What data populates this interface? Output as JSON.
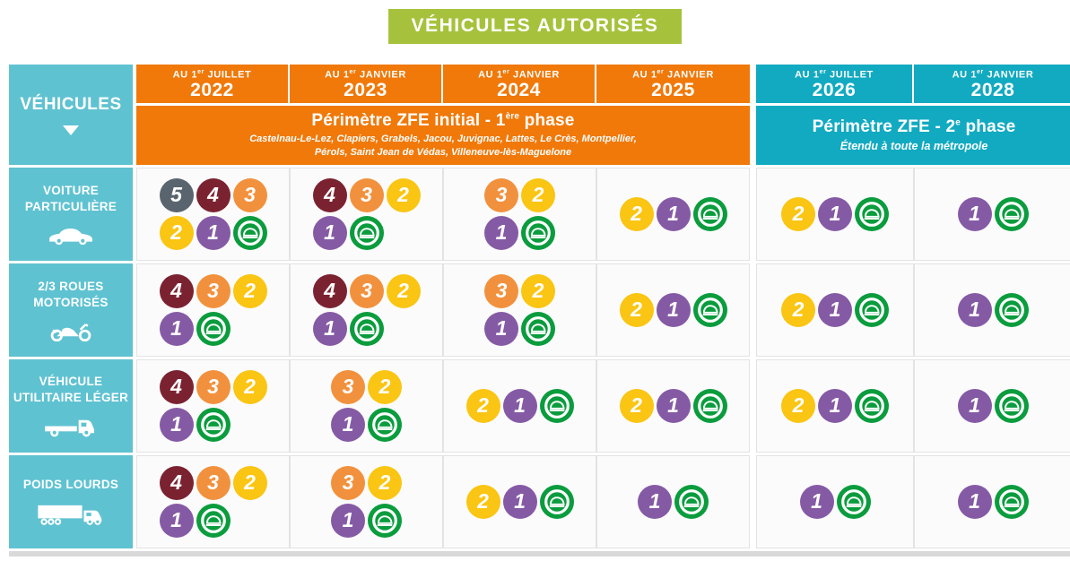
{
  "title": "VÉHICULES AUTORISÉS",
  "corner": {
    "label": "VÉHICULES"
  },
  "colors": {
    "title_green": "#a6c23c",
    "phase1_orange": "#f0790a",
    "teal_light": "#5fc2d1",
    "teal_deep": "#12aac1",
    "bottom_bar_gray": "#d9d9d9"
  },
  "columns": [
    {
      "prefix": "AU 1",
      "sup": "er",
      "suffix": " JUILLET",
      "year": "2022",
      "section": "phase1"
    },
    {
      "prefix": "AU 1",
      "sup": "er",
      "suffix": " JANVIER",
      "year": "2023",
      "section": "phase1"
    },
    {
      "prefix": "AU 1",
      "sup": "er",
      "suffix": " JANVIER",
      "year": "2024",
      "section": "phase1"
    },
    {
      "prefix": "AU 1",
      "sup": "er",
      "suffix": " JANVIER",
      "year": "2025",
      "section": "phase1"
    },
    {
      "prefix": "AU 1",
      "sup": "er",
      "suffix": " JUILLET",
      "year": "2026",
      "section": "phase2"
    },
    {
      "prefix": "AU 1",
      "sup": "er",
      "suffix": " JANVIER",
      "year": "2028",
      "section": "phase2"
    }
  ],
  "phase1_header": {
    "title_pre": "Périmètre ZFE initial - 1",
    "title_sup": "ère",
    "title_post": " phase",
    "subtitle_lines": [
      "Castelnau-Le-Lez, Clapiers, Grabels, Jacou, Juvignac, Lattes, Le Crès, Montpellier,",
      "Pérols, Saint Jean de Védas, Villeneuve-lès-Maguelone"
    ]
  },
  "phase2_header": {
    "title_pre": "Périmètre ZFE - 2",
    "title_sup": "e",
    "title_post": " phase",
    "subtitle": "Étendu à toute la métropole"
  },
  "badges": {
    "5": {
      "label": "5",
      "color": "#5a646e"
    },
    "4": {
      "label": "4",
      "color": "#7b2231"
    },
    "3": {
      "label": "3",
      "color": "#f2913d"
    },
    "2": {
      "label": "2",
      "color": "#fac513"
    },
    "1": {
      "label": "1",
      "color": "#855aa5"
    },
    "E": {
      "label": "E",
      "color": "#0a9c3d",
      "type": "electric-green-vignette"
    }
  },
  "rows": [
    {
      "label_lines": [
        "VOITURE",
        "PARTICULIÈRE"
      ],
      "icon": "car-icon",
      "cells": [
        [
          [
            "5",
            "4",
            "3"
          ],
          [
            "2",
            "1",
            "E"
          ]
        ],
        [
          [
            "4",
            "3",
            "2"
          ],
          [
            "1",
            "E"
          ]
        ],
        [
          [
            "3",
            "2"
          ],
          [
            "1",
            "E"
          ]
        ],
        [
          [
            "2",
            "1",
            "E"
          ]
        ],
        [
          [
            "2",
            "1",
            "E"
          ]
        ],
        [
          [
            "1",
            "E"
          ]
        ]
      ]
    },
    {
      "label_lines": [
        "2/3 ROUES",
        "MOTORISÉS"
      ],
      "icon": "motorcycle-icon",
      "cells": [
        [
          [
            "4",
            "3",
            "2"
          ],
          [
            "1",
            "E"
          ]
        ],
        [
          [
            "4",
            "3",
            "2"
          ],
          [
            "1",
            "E"
          ]
        ],
        [
          [
            "3",
            "2"
          ],
          [
            "1",
            "E"
          ]
        ],
        [
          [
            "2",
            "1",
            "E"
          ]
        ],
        [
          [
            "2",
            "1",
            "E"
          ]
        ],
        [
          [
            "1",
            "E"
          ]
        ]
      ]
    },
    {
      "label_lines": [
        "VÉHICULE",
        "UTILITAIRE LÉGER"
      ],
      "icon": "flatbed-truck-icon",
      "cells": [
        [
          [
            "4",
            "3",
            "2"
          ],
          [
            "1",
            "E"
          ]
        ],
        [
          [
            "3",
            "2"
          ],
          [
            "1",
            "E"
          ]
        ],
        [
          [
            "2",
            "1",
            "E"
          ]
        ],
        [
          [
            "2",
            "1",
            "E"
          ]
        ],
        [
          [
            "2",
            "1",
            "E"
          ]
        ],
        [
          [
            "1",
            "E"
          ]
        ]
      ]
    },
    {
      "label_lines": [
        "POIDS LOURDS"
      ],
      "icon": "semi-truck-icon",
      "cells": [
        [
          [
            "4",
            "3",
            "2"
          ],
          [
            "1",
            "E"
          ]
        ],
        [
          [
            "3",
            "2"
          ],
          [
            "1",
            "E"
          ]
        ],
        [
          [
            "2",
            "1",
            "E"
          ]
        ],
        [
          [
            "1",
            "E"
          ]
        ],
        [
          [
            "1",
            "E"
          ]
        ],
        [
          [
            "1",
            "E"
          ]
        ]
      ]
    }
  ]
}
